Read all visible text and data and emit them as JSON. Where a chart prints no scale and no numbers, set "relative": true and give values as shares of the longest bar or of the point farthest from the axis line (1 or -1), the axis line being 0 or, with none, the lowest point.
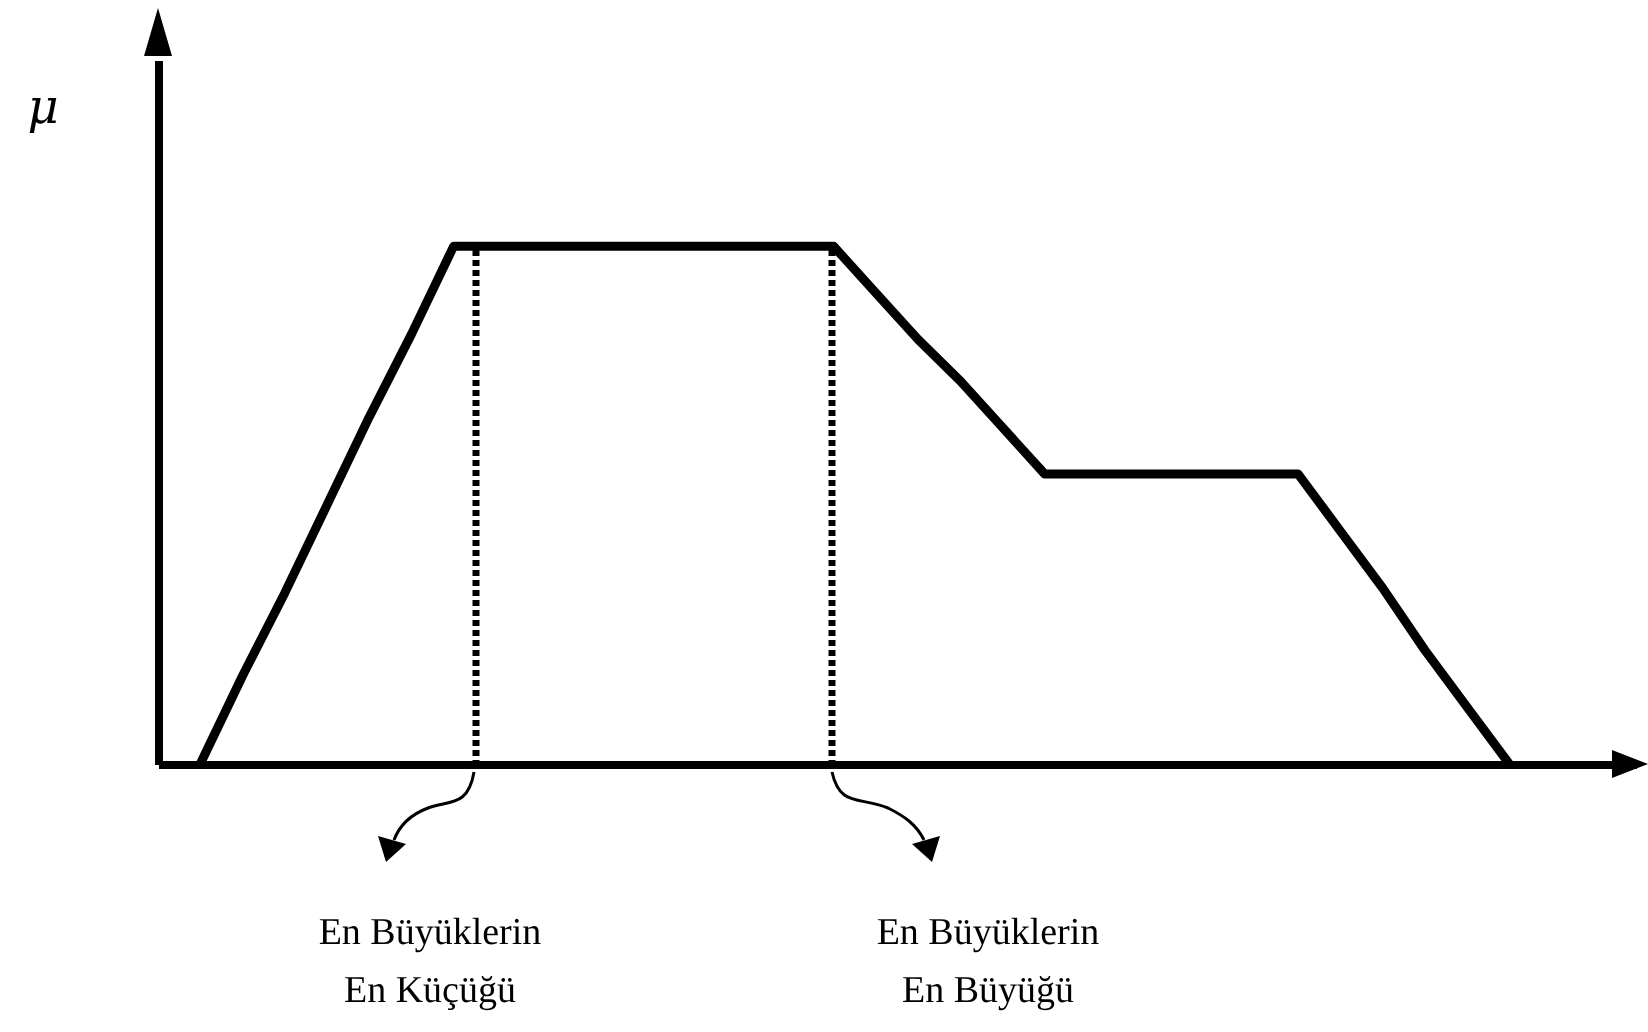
{
  "chart_data": {
    "type": "line",
    "ylabel": "μ",
    "relative": true,
    "line_style": "solid",
    "categories": [
      null,
      null,
      null,
      null,
      null,
      null,
      null,
      null,
      null,
      null,
      null,
      null,
      null,
      null,
      null,
      null,
      null,
      null,
      null,
      null,
      null,
      null,
      null,
      null,
      null,
      null,
      null,
      null,
      null,
      null,
      null,
      null,
      null,
      null
    ],
    "series": [
      {
        "color": "#000000",
        "values": [
          0,
          0.17,
          0.33,
          0.5,
          0.67,
          0.83,
          1,
          1,
          1,
          1,
          1,
          1,
          1,
          1,
          1,
          1,
          0.91,
          0.82,
          0.74,
          0.65,
          0.56,
          0.56,
          0.56,
          0.56,
          0.56,
          0.56,
          0.56,
          0.45,
          0.34,
          0.22,
          0.11,
          0,
          null,
          null
        ]
      }
    ],
    "annotations": [
      "En Büyüklerin\nEn Küçüğü",
      "En Büyüklerin\nEn Büyüğü"
    ]
  }
}
